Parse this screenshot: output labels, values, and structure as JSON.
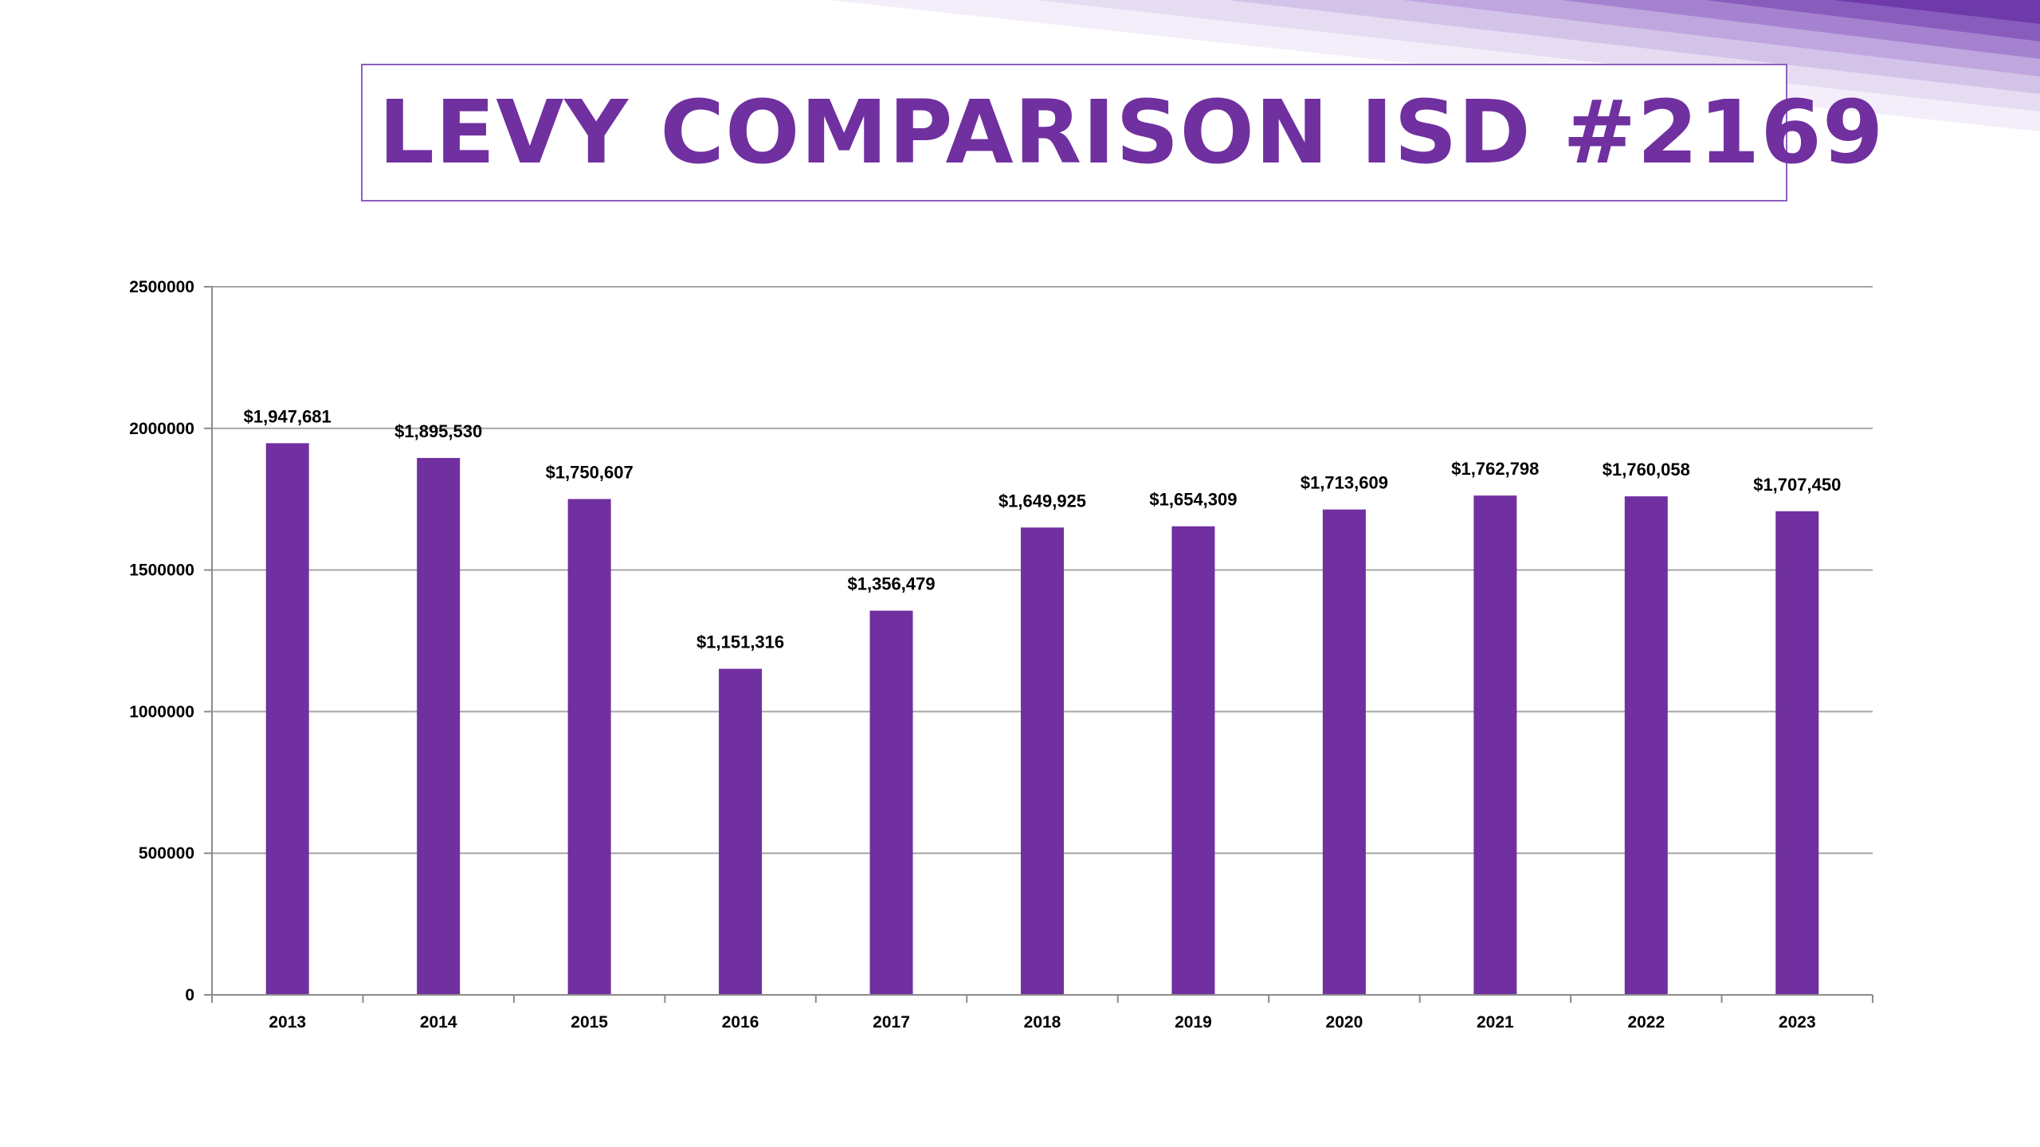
{
  "slide": {
    "title": "LEVY COMPARISON ISD #2169"
  },
  "colors": {
    "bar": "#7030a0",
    "title": "#7030a0",
    "title_border": "#8e5fbe",
    "grid": "#a6a6a6",
    "axis": "#8c8c8c"
  },
  "chart_data": {
    "type": "bar",
    "title": "",
    "xlabel": "",
    "ylabel": "",
    "categories": [
      "2013",
      "2014",
      "2015",
      "2016",
      "2017",
      "2018",
      "2019",
      "2020",
      "2021",
      "2022",
      "2023"
    ],
    "values": [
      1947681,
      1895530,
      1750607,
      1151316,
      1356479,
      1649925,
      1654309,
      1713609,
      1762798,
      1760058,
      1707450
    ],
    "data_labels": [
      "$1,947,681",
      "$1,895,530",
      "$1,750,607",
      "$1,151,316",
      "$1,356,479",
      "$1,649,925",
      "$1,654,309",
      "$1,713,609",
      "$1,762,798",
      "$1,760,058",
      "$1,707,450"
    ],
    "ylim": [
      0,
      2500000
    ],
    "yticks": [
      0,
      500000,
      1000000,
      1500000,
      2000000,
      2500000
    ],
    "ytick_labels": [
      "0",
      "500000",
      "1000000",
      "1500000",
      "2000000",
      "2500000"
    ],
    "grid": true,
    "legend": "none"
  }
}
